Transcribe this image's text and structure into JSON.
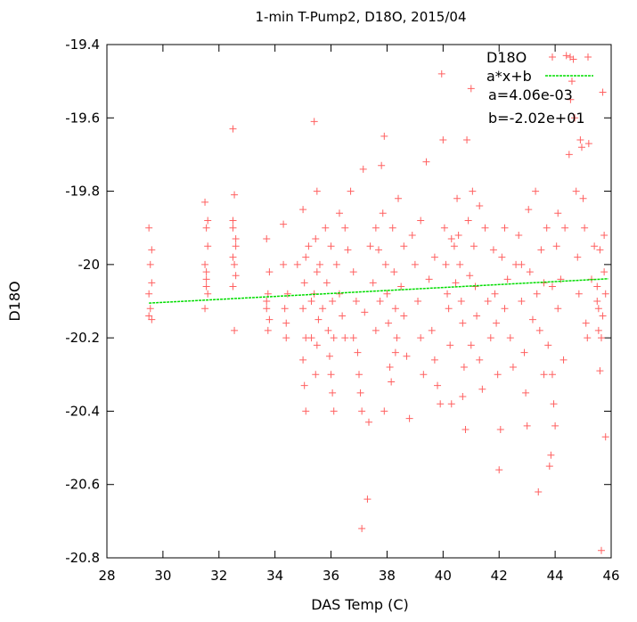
{
  "chart_data": {
    "type": "scatter",
    "title": "1-min T-Pump2, D18O, 2015/04",
    "xlabel": "DAS Temp (C)",
    "ylabel": "D18O",
    "xlim": [
      28,
      46
    ],
    "ylim": [
      -20.8,
      -19.4
    ],
    "xticks": [
      28,
      30,
      32,
      34,
      36,
      38,
      40,
      42,
      44,
      46
    ],
    "yticks": [
      -20.8,
      -20.6,
      -20.4,
      -20.2,
      -20,
      -19.8,
      -19.6,
      -19.4
    ],
    "ytick_labels": [
      "-20.8",
      "-20.6",
      "-20.4",
      "-20.2",
      "-20",
      "-19.8",
      "-19.6",
      "-19.4"
    ],
    "grid": false,
    "legend_position": "top-right",
    "series": [
      {
        "name": "D18O",
        "marker": "plus",
        "color": "#ff6060",
        "points": [
          [
            29.5,
            -19.9
          ],
          [
            29.55,
            -20.0
          ],
          [
            29.6,
            -19.96
          ],
          [
            29.5,
            -20.08
          ],
          [
            29.55,
            -20.12
          ],
          [
            29.6,
            -20.15
          ],
          [
            29.5,
            -20.14
          ],
          [
            29.6,
            -20.05
          ],
          [
            31.5,
            -19.83
          ],
          [
            31.55,
            -19.9
          ],
          [
            31.6,
            -19.95
          ],
          [
            31.5,
            -20.0
          ],
          [
            31.55,
            -20.04
          ],
          [
            31.6,
            -20.08
          ],
          [
            31.5,
            -20.12
          ],
          [
            31.55,
            -20.02
          ],
          [
            31.6,
            -19.88
          ],
          [
            31.55,
            -20.06
          ],
          [
            32.5,
            -19.63
          ],
          [
            32.55,
            -19.81
          ],
          [
            32.5,
            -19.9
          ],
          [
            32.6,
            -19.95
          ],
          [
            32.5,
            -19.98
          ],
          [
            32.55,
            -20.0
          ],
          [
            32.6,
            -20.03
          ],
          [
            32.5,
            -20.06
          ],
          [
            32.55,
            -20.18
          ],
          [
            32.6,
            -19.93
          ],
          [
            32.5,
            -19.88
          ],
          [
            33.7,
            -19.93
          ],
          [
            33.8,
            -20.02
          ],
          [
            33.75,
            -20.08
          ],
          [
            33.7,
            -20.12
          ],
          [
            33.8,
            -20.15
          ],
          [
            33.75,
            -20.18
          ],
          [
            33.7,
            -20.1
          ],
          [
            34.3,
            -20.0
          ],
          [
            34.35,
            -20.12
          ],
          [
            34.4,
            -20.16
          ],
          [
            34.3,
            -19.89
          ],
          [
            34.45,
            -20.08
          ],
          [
            34.4,
            -20.2
          ],
          [
            35.0,
            -19.85
          ],
          [
            35.1,
            -19.98
          ],
          [
            35.05,
            -20.05
          ],
          [
            35.0,
            -20.12
          ],
          [
            35.1,
            -20.2
          ],
          [
            35.0,
            -20.26
          ],
          [
            35.05,
            -20.33
          ],
          [
            35.1,
            -20.4
          ],
          [
            35.2,
            -19.95
          ],
          [
            35.3,
            -20.1
          ],
          [
            35.4,
            -19.61
          ],
          [
            35.5,
            -19.8
          ],
          [
            35.45,
            -19.93
          ],
          [
            35.5,
            -20.02
          ],
          [
            35.4,
            -20.08
          ],
          [
            35.55,
            -20.15
          ],
          [
            35.5,
            -20.22
          ],
          [
            35.45,
            -20.3
          ],
          [
            35.6,
            -20.0
          ],
          [
            35.7,
            -20.12
          ],
          [
            35.8,
            -19.9
          ],
          [
            35.85,
            -20.05
          ],
          [
            35.9,
            -20.18
          ],
          [
            35.95,
            -20.25
          ],
          [
            36.0,
            -20.3
          ],
          [
            36.05,
            -20.35
          ],
          [
            36.1,
            -20.4
          ],
          [
            36.0,
            -19.95
          ],
          [
            36.1,
            -20.2
          ],
          [
            36.05,
            -20.1
          ],
          [
            36.2,
            -20.0
          ],
          [
            36.3,
            -20.08
          ],
          [
            36.4,
            -20.14
          ],
          [
            36.5,
            -20.2
          ],
          [
            36.6,
            -19.96
          ],
          [
            36.7,
            -19.8
          ],
          [
            36.8,
            -20.02
          ],
          [
            36.9,
            -20.1
          ],
          [
            36.95,
            -20.24
          ],
          [
            37.0,
            -20.3
          ],
          [
            37.05,
            -20.35
          ],
          [
            37.1,
            -20.4
          ],
          [
            37.15,
            -19.74
          ],
          [
            37.2,
            -20.13
          ],
          [
            37.1,
            -20.72
          ],
          [
            37.3,
            -20.64
          ],
          [
            37.35,
            -20.43
          ],
          [
            37.4,
            -19.95
          ],
          [
            37.5,
            -20.05
          ],
          [
            37.6,
            -20.18
          ],
          [
            37.7,
            -19.96
          ],
          [
            37.75,
            -20.1
          ],
          [
            37.8,
            -19.73
          ],
          [
            37.85,
            -19.86
          ],
          [
            37.9,
            -19.65
          ],
          [
            37.95,
            -20.0
          ],
          [
            38.0,
            -20.08
          ],
          [
            38.05,
            -20.16
          ],
          [
            38.1,
            -20.28
          ],
          [
            38.15,
            -20.32
          ],
          [
            38.2,
            -19.9
          ],
          [
            38.25,
            -20.02
          ],
          [
            38.3,
            -20.12
          ],
          [
            38.35,
            -20.2
          ],
          [
            38.4,
            -19.82
          ],
          [
            38.5,
            -20.06
          ],
          [
            38.6,
            -20.14
          ],
          [
            38.7,
            -20.25
          ],
          [
            38.8,
            -20.42
          ],
          [
            38.9,
            -19.92
          ],
          [
            39.0,
            -20.0
          ],
          [
            39.1,
            -20.1
          ],
          [
            39.2,
            -20.2
          ],
          [
            39.3,
            -20.3
          ],
          [
            39.4,
            -19.72
          ],
          [
            39.5,
            -20.04
          ],
          [
            39.6,
            -20.18
          ],
          [
            39.7,
            -20.26
          ],
          [
            39.8,
            -20.33
          ],
          [
            39.9,
            -20.38
          ],
          [
            39.95,
            -19.48
          ],
          [
            40.0,
            -19.66
          ],
          [
            40.05,
            -19.9
          ],
          [
            40.1,
            -20.0
          ],
          [
            40.15,
            -20.08
          ],
          [
            40.2,
            -20.12
          ],
          [
            40.25,
            -20.22
          ],
          [
            40.3,
            -20.38
          ],
          [
            40.4,
            -19.95
          ],
          [
            40.45,
            -20.05
          ],
          [
            40.5,
            -19.82
          ],
          [
            40.55,
            -19.92
          ],
          [
            40.6,
            -20.0
          ],
          [
            40.65,
            -20.1
          ],
          [
            40.7,
            -20.16
          ],
          [
            40.75,
            -20.28
          ],
          [
            40.8,
            -20.45
          ],
          [
            40.85,
            -19.66
          ],
          [
            40.9,
            -19.88
          ],
          [
            40.95,
            -20.03
          ],
          [
            41.0,
            -19.52
          ],
          [
            41.05,
            -19.8
          ],
          [
            41.1,
            -19.95
          ],
          [
            41.15,
            -20.06
          ],
          [
            41.2,
            -20.14
          ],
          [
            41.3,
            -20.26
          ],
          [
            41.4,
            -20.34
          ],
          [
            41.5,
            -19.9
          ],
          [
            41.6,
            -20.1
          ],
          [
            41.7,
            -20.2
          ],
          [
            41.8,
            -19.96
          ],
          [
            41.85,
            -20.08
          ],
          [
            41.9,
            -20.16
          ],
          [
            41.95,
            -20.3
          ],
          [
            42.0,
            -20.56
          ],
          [
            42.05,
            -20.45
          ],
          [
            42.1,
            -19.98
          ],
          [
            42.2,
            -20.12
          ],
          [
            42.3,
            -20.04
          ],
          [
            42.4,
            -20.2
          ],
          [
            42.5,
            -20.28
          ],
          [
            42.6,
            -20.0
          ],
          [
            42.7,
            -19.92
          ],
          [
            42.8,
            -20.1
          ],
          [
            42.9,
            -20.24
          ],
          [
            42.95,
            -20.35
          ],
          [
            43.0,
            -20.44
          ],
          [
            43.05,
            -19.85
          ],
          [
            43.1,
            -20.02
          ],
          [
            43.2,
            -20.15
          ],
          [
            43.3,
            -19.8
          ],
          [
            43.35,
            -20.08
          ],
          [
            43.4,
            -20.62
          ],
          [
            43.45,
            -20.18
          ],
          [
            43.5,
            -19.96
          ],
          [
            43.6,
            -20.05
          ],
          [
            43.7,
            -19.9
          ],
          [
            43.75,
            -20.22
          ],
          [
            43.8,
            -20.55
          ],
          [
            43.85,
            -20.52
          ],
          [
            43.9,
            -20.3
          ],
          [
            43.95,
            -20.38
          ],
          [
            44.0,
            -20.44
          ],
          [
            44.05,
            -19.95
          ],
          [
            44.1,
            -20.12
          ],
          [
            44.2,
            -20.04
          ],
          [
            44.3,
            -20.26
          ],
          [
            44.35,
            -19.9
          ],
          [
            44.4,
            -19.43
          ],
          [
            44.5,
            -19.7
          ],
          [
            44.55,
            -19.55
          ],
          [
            44.6,
            -19.5
          ],
          [
            44.65,
            -19.44
          ],
          [
            44.7,
            -19.6
          ],
          [
            44.75,
            -19.8
          ],
          [
            44.8,
            -19.98
          ],
          [
            44.85,
            -20.08
          ],
          [
            44.9,
            -19.66
          ],
          [
            44.95,
            -19.68
          ],
          [
            45.0,
            -19.82
          ],
          [
            45.05,
            -19.9
          ],
          [
            45.1,
            -20.16
          ],
          [
            45.15,
            -20.2
          ],
          [
            45.2,
            -19.67
          ],
          [
            45.3,
            -20.04
          ],
          [
            45.4,
            -19.95
          ],
          [
            45.5,
            -20.1
          ],
          [
            45.55,
            -20.18
          ],
          [
            45.6,
            -20.29
          ],
          [
            45.65,
            -20.78
          ],
          [
            45.7,
            -19.53
          ],
          [
            45.75,
            -20.02
          ],
          [
            45.8,
            -20.47
          ],
          [
            45.6,
            -19.96
          ],
          [
            45.5,
            -20.06
          ],
          [
            45.7,
            -20.14
          ],
          [
            45.75,
            -19.92
          ],
          [
            45.65,
            -20.2
          ],
          [
            45.55,
            -20.12
          ],
          [
            45.8,
            -20.08
          ],
          [
            38.6,
            -19.95
          ],
          [
            39.2,
            -19.88
          ],
          [
            40.3,
            -19.93
          ],
          [
            41.3,
            -19.84
          ],
          [
            36.5,
            -19.9
          ],
          [
            37.9,
            -20.4
          ],
          [
            40.7,
            -20.36
          ],
          [
            42.8,
            -20.0
          ],
          [
            43.6,
            -20.3
          ],
          [
            44.1,
            -19.86
          ],
          [
            36.8,
            -20.2
          ],
          [
            38.3,
            -20.24
          ],
          [
            39.7,
            -19.98
          ],
          [
            41.0,
            -20.22
          ],
          [
            42.2,
            -19.9
          ],
          [
            43.9,
            -20.06
          ],
          [
            34.8,
            -20.0
          ],
          [
            35.3,
            -20.2
          ],
          [
            36.3,
            -19.86
          ],
          [
            37.6,
            -19.9
          ]
        ]
      },
      {
        "name": "a*x+b",
        "type": "line",
        "color": "#00dd00",
        "x": [
          29.5,
          45.9
        ],
        "y": [
          -20.1052,
          -20.0388
        ]
      }
    ],
    "annotations": [
      "a=4.06e-03",
      "b=-2.02e+01"
    ]
  }
}
